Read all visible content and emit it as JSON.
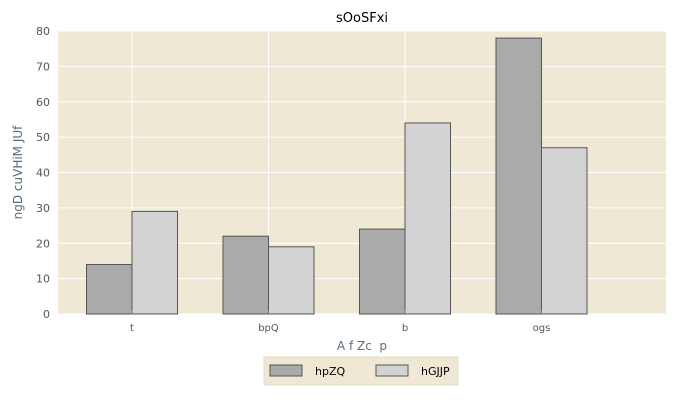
{
  "chart_data": {
    "type": "bar",
    "title": "sOoSFxi",
    "xlabel": "A f Zc  p",
    "ylabel": "ngD cuVHiM JUf",
    "categories": [
      "t",
      "bpQ",
      "b",
      "ogs"
    ],
    "series": [
      {
        "name": "hpZQ",
        "values": [
          14,
          22,
          24,
          78
        ],
        "color": "#aaaaaa"
      },
      {
        "name": "hGJJP",
        "values": [
          29,
          19,
          54,
          47
        ],
        "color": "#d3d3d3"
      }
    ],
    "ylim": [
      0,
      80
    ],
    "yticks": [
      0,
      10,
      20,
      30,
      40,
      50,
      60,
      70,
      80
    ],
    "grid": true,
    "legend_position": "bottom-center",
    "plot_background": "#efe8d5",
    "grid_color": "#ffffff",
    "bar_edge_color": "#555555",
    "legend_background": "#efe8d5"
  }
}
